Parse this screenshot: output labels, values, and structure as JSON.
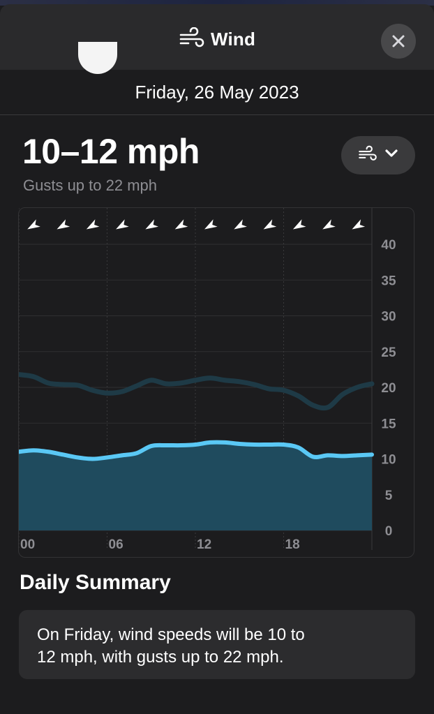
{
  "header": {
    "title": "Wind",
    "icon": "wind-icon",
    "close_icon": "close-icon"
  },
  "date": "Friday, 26 May 2023",
  "current": {
    "speed": "10–12 mph",
    "gusts": "Gusts up to 22 mph"
  },
  "selector": {
    "icon": "wind-icon",
    "chevron": "chevron-down-icon"
  },
  "colors": {
    "background": "#1c1c1e",
    "wind_line": "#5ac8f5",
    "wind_fill": "#1f4b5e",
    "gust_line": "#1e3a46"
  },
  "chart_data": {
    "type": "area",
    "x_ticks": [
      "00",
      "06",
      "12",
      "18"
    ],
    "y_ticks": [
      "0",
      "5",
      "10",
      "15",
      "20",
      "25",
      "30",
      "35",
      "40"
    ],
    "ylim": [
      0,
      40
    ],
    "xlim": [
      0,
      24
    ],
    "grid": true,
    "direction_arrows": 12,
    "series": [
      {
        "x": [
          0,
          1,
          2,
          3,
          4,
          5,
          6,
          7,
          8,
          9,
          10,
          11,
          12,
          13,
          14,
          15,
          16,
          17,
          18,
          19,
          20,
          21,
          22,
          23,
          24
        ],
        "values": [
          21.8,
          21.5,
          20.6,
          20.4,
          20.3,
          19.6,
          19.2,
          19.4,
          20.2,
          21,
          20.5,
          20.6,
          21,
          21.3,
          21,
          20.8,
          20.4,
          19.8,
          19.6,
          18.8,
          17.5,
          17.2,
          19,
          20,
          20.5
        ],
        "style": "line"
      },
      {
        "x": [
          0,
          1,
          2,
          3,
          4,
          5,
          6,
          7,
          8,
          9,
          10,
          11,
          12,
          13,
          14,
          15,
          16,
          17,
          18,
          19,
          20,
          21,
          22,
          23,
          24
        ],
        "values": [
          11,
          11.2,
          11,
          10.6,
          10.2,
          10,
          10.2,
          10.5,
          10.8,
          11.8,
          11.9,
          11.9,
          12,
          12.3,
          12.3,
          12.1,
          12,
          12,
          12,
          11.6,
          10.3,
          10.5,
          10.4,
          10.5,
          10.6
        ],
        "style": "area"
      }
    ]
  },
  "summary": {
    "title": "Daily Summary",
    "text_line1": "On Friday, wind speeds will be 10 to",
    "text_line2": "12 mph, with gusts up to 22 mph."
  }
}
